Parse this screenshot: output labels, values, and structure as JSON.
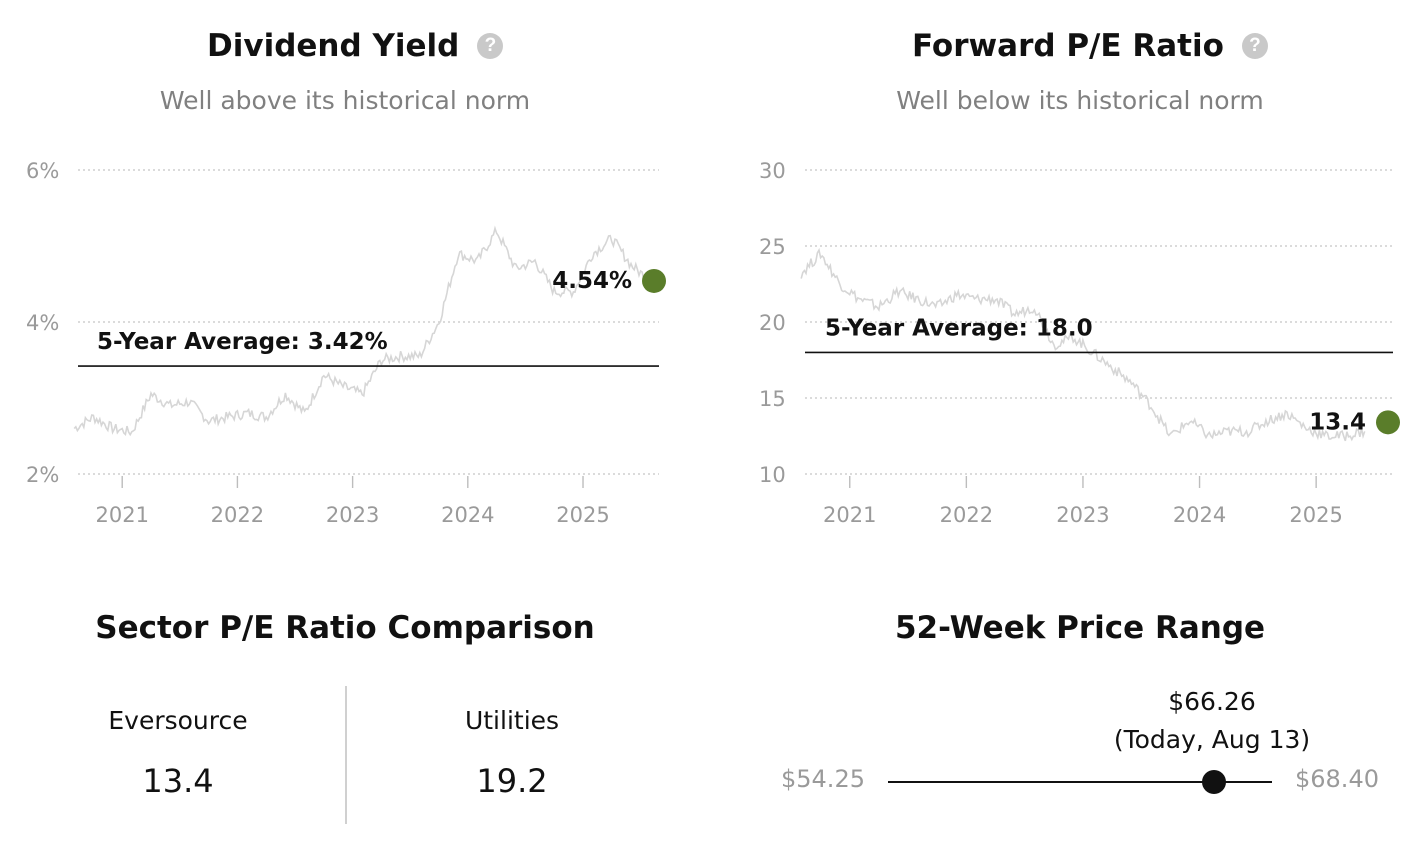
{
  "colors": {
    "accent": "#5a7d2a",
    "history_line": "#d6d6d6",
    "grid": "#cfcfcf",
    "text_muted": "#808080"
  },
  "dividend_yield": {
    "title": "Dividend Yield",
    "help_icon": "question-circle-icon",
    "subtitle": "Well above its historical norm"
  },
  "forward_pe": {
    "title": "Forward P/E Ratio",
    "help_icon": "question-circle-icon",
    "subtitle": "Well below its historical norm"
  },
  "chart_data": [
    {
      "type": "line",
      "title": "Dividend Yield",
      "subtitle": "Well above its historical norm",
      "y_ticks": [
        "2%",
        "4%",
        "6%"
      ],
      "ylim": [
        2,
        6
      ],
      "x_ticks": [
        "2021",
        "2022",
        "2023",
        "2024",
        "2025"
      ],
      "xlim": [
        "2020-08-13",
        "2025-08-13"
      ],
      "grid": true,
      "average": {
        "label": "5-Year Average: 3.42%",
        "value": 3.42
      },
      "current": {
        "label": "4.54%",
        "value": 4.54,
        "date": "2025-08-13"
      },
      "series": [
        {
          "x": [
            "2020-08",
            "2020-10",
            "2020-12",
            "2021-02",
            "2021-04",
            "2021-06",
            "2021-08",
            "2021-10",
            "2021-12",
            "2022-02",
            "2022-04",
            "2022-06",
            "2022-08",
            "2022-10",
            "2022-12",
            "2023-02",
            "2023-04",
            "2023-06",
            "2023-08",
            "2023-10",
            "2023-12",
            "2024-02",
            "2024-04",
            "2024-06",
            "2024-08",
            "2024-10",
            "2024-12",
            "2025-02",
            "2025-04",
            "2025-06",
            "2025-08"
          ],
          "values": [
            2.6,
            2.75,
            2.6,
            2.55,
            3.05,
            2.9,
            2.95,
            2.7,
            2.75,
            2.8,
            2.75,
            3.05,
            2.8,
            3.3,
            3.15,
            3.05,
            3.5,
            3.55,
            3.55,
            4.0,
            4.9,
            4.8,
            5.2,
            4.7,
            4.8,
            4.4,
            4.4,
            4.9,
            5.1,
            4.75,
            4.54
          ]
        }
      ]
    },
    {
      "type": "line",
      "title": "Forward P/E Ratio",
      "subtitle": "Well below its historical norm",
      "y_ticks": [
        "10",
        "15",
        "20",
        "25",
        "30"
      ],
      "ylim": [
        10,
        30
      ],
      "x_ticks": [
        "2021",
        "2022",
        "2023",
        "2024",
        "2025"
      ],
      "xlim": [
        "2020-08-13",
        "2025-08-13"
      ],
      "grid": true,
      "average": {
        "label": "5-Year Average: 18.0",
        "value": 18.0
      },
      "current": {
        "label": "13.4",
        "value": 13.4,
        "date": "2025-08-13"
      },
      "series": [
        {
          "x": [
            "2020-08",
            "2020-10",
            "2020-12",
            "2021-02",
            "2021-04",
            "2021-06",
            "2021-08",
            "2021-10",
            "2021-12",
            "2022-02",
            "2022-04",
            "2022-06",
            "2022-08",
            "2022-10",
            "2022-12",
            "2023-02",
            "2023-04",
            "2023-06",
            "2023-08",
            "2023-10",
            "2023-12",
            "2024-02",
            "2024-04",
            "2024-06",
            "2024-08",
            "2024-10",
            "2024-12",
            "2025-02",
            "2025-04",
            "2025-06"
          ],
          "values": [
            23.2,
            24.5,
            22.5,
            21.5,
            21.0,
            22.0,
            21.5,
            21.0,
            21.8,
            21.5,
            21.5,
            20.5,
            21.0,
            18.5,
            19.0,
            18.0,
            17.0,
            16.0,
            14.5,
            12.5,
            13.5,
            12.5,
            12.8,
            12.8,
            13.5,
            14.0,
            13.0,
            12.5,
            12.5,
            12.8
          ]
        }
      ]
    }
  ],
  "sector_comparison": {
    "title": "Sector P/E Ratio Comparison",
    "items": [
      {
        "name": "Eversource",
        "value": "13.4"
      },
      {
        "name": "Utilities",
        "value": "19.2"
      }
    ]
  },
  "price_range": {
    "title": "52-Week Price Range",
    "low": "$54.25",
    "high": "$68.40",
    "current_price": "$66.26",
    "current_note": "(Today, Aug 13)",
    "low_value": 54.25,
    "high_value": 68.4,
    "current_value": 66.26
  }
}
